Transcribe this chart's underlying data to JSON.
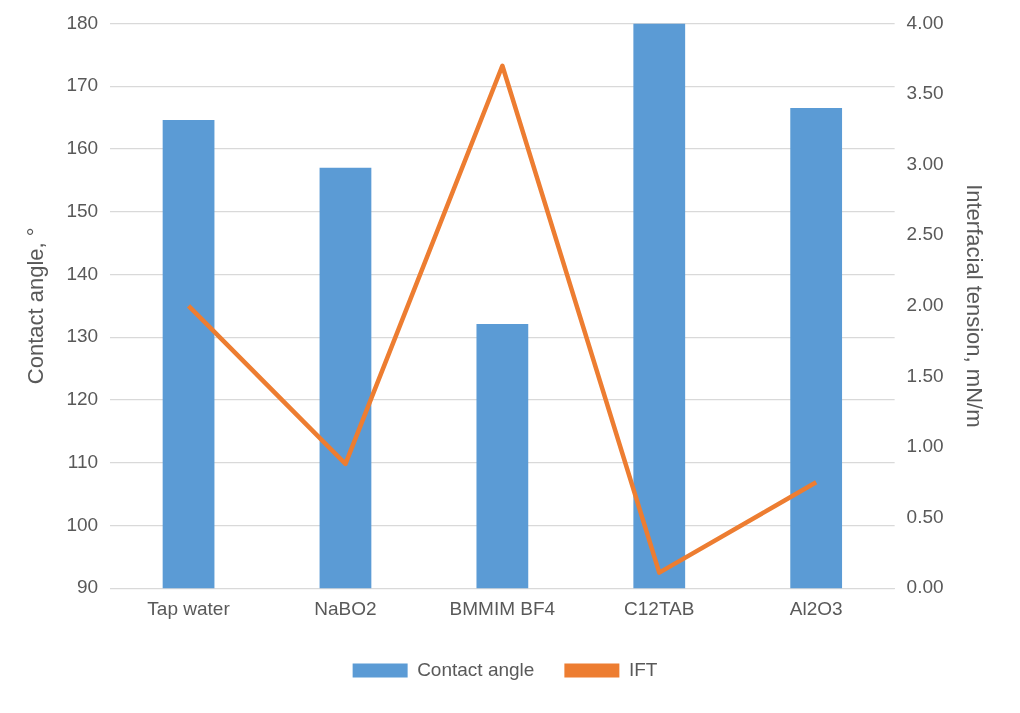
{
  "chart_data": {
    "type": "bar",
    "categories": [
      "Tap water",
      "NaBO2",
      "BMMIM BF4",
      "C12TAB",
      "Al2O3"
    ],
    "series": [
      {
        "name": "Contact angle",
        "color": "#5b9bd5",
        "values": [
          164.6,
          157,
          132.1,
          180,
          166.5
        ]
      },
      {
        "name": "IFT",
        "type": "line",
        "axis": "y2",
        "color": "#ed7d31",
        "values": [
          2.0,
          0.88,
          3.7,
          0.11,
          0.75
        ]
      }
    ],
    "ylabel": "Contact angle, °",
    "y2label": "Interfacial tension, mN/m",
    "ylim": [
      90,
      180
    ],
    "yticks": [
      90,
      100,
      110,
      120,
      130,
      140,
      150,
      160,
      170,
      180
    ],
    "y2lim": [
      0,
      4
    ],
    "y2ticks": [
      {
        "value": 0,
        "label": "0.00"
      },
      {
        "value": 0.5,
        "label": "0.50"
      },
      {
        "value": 1,
        "label": "1.00"
      },
      {
        "value": 1.5,
        "label": "1.50"
      },
      {
        "value": 2,
        "label": "2.00"
      },
      {
        "value": 2.5,
        "label": "2.50"
      },
      {
        "value": 3,
        "label": "3.00"
      },
      {
        "value": 3.5,
        "label": "3.50"
      },
      {
        "value": 4,
        "label": "4.00"
      }
    ],
    "grid": "y",
    "legend": "bottom",
    "marker": "none"
  }
}
